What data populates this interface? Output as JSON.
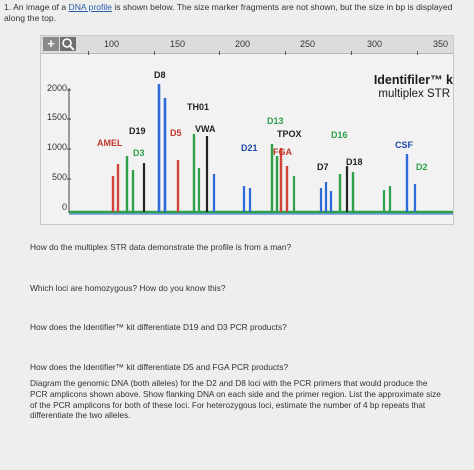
{
  "intro": {
    "prefix": "1. An image of a ",
    "link": "DNA profile",
    "suffix": " is shown below. The size marker fragments are not shown, but the size in bp is displayed along the top."
  },
  "toolbar": {
    "zoom_icon": "+",
    "magnifier_icon": "magnifier-icon",
    "bp_scale": [
      "100",
      "150",
      "200",
      "250",
      "300",
      "350"
    ]
  },
  "y_axis": [
    "2000",
    "1500",
    "1000",
    "500",
    "0"
  ],
  "kit": {
    "title": "Identifiler™ k",
    "subtitle": "multiplex STR"
  },
  "loci": {
    "d8": "D8",
    "th01": "TH01",
    "amel": "AMEL",
    "d19": "D19",
    "d5": "D5",
    "vwa": "VWA",
    "d3": "D3",
    "d13": "D13",
    "tpox": "TPOX",
    "d21": "D21",
    "fga": "FGA",
    "d16": "D16",
    "csf": "CSF",
    "d7": "D7",
    "d18": "D18",
    "d2": "D2"
  },
  "colors": {
    "blue": "#2f6bd8",
    "green": "#3aa14a",
    "red": "#d0443a",
    "black": "#222222",
    "baseline": "#2fa04a"
  },
  "questions": {
    "q1": "How do the multiplex STR data demonstrate the profile is from a man?",
    "q2": "Which loci are homozygous? How do you know this?",
    "q3": "How does the Identifier™ kit differentiate D19 and D3 PCR products?",
    "q4": "How does the Identifier™ kit differentiate D5 and FGA PCR products?",
    "q5": "Diagram the genomic DNA (both alleles) for the D2 and D8 loci with the PCR primers that would produce the PCR amplicons shown above. Show flanking DNA on each side and the primer region. List the approximate size of the PCR amplicons for both of these loci. For heterozygous loci, estimate the number of 4 bp repeats that differentiate the two alleles."
  }
}
